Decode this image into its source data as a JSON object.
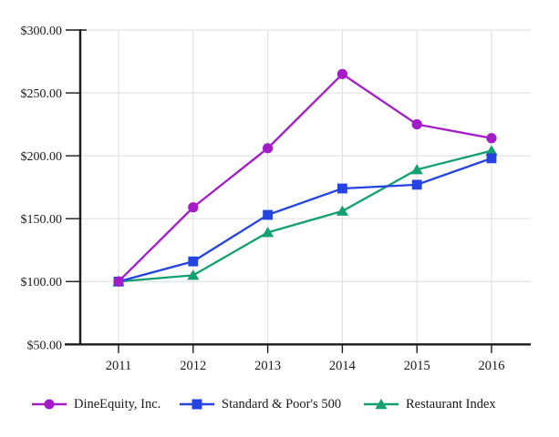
{
  "chart_data": {
    "type": "line",
    "title": "",
    "xlabel": "",
    "ylabel": "",
    "categories": [
      "2011",
      "2012",
      "2013",
      "2014",
      "2015",
      "2016"
    ],
    "series": [
      {
        "name": "DineEquity, Inc.",
        "marker": "circle",
        "color": "#A21CC8",
        "values": [
          100,
          159,
          206,
          265,
          225,
          214
        ]
      },
      {
        "name": "Standard & Poor's 500",
        "marker": "square",
        "color": "#2543E0",
        "values": [
          100,
          116,
          153,
          174,
          177,
          198
        ]
      },
      {
        "name": "Restaurant Index",
        "marker": "triangle",
        "color": "#12A06E",
        "values": [
          100,
          105,
          139,
          156,
          189,
          204
        ]
      }
    ],
    "ylim": [
      50,
      300
    ],
    "yticks": [
      50,
      100,
      150,
      200,
      250,
      300
    ],
    "ytick_labels": [
      "$50.00",
      "$100.00",
      "$150.00",
      "$200.00",
      "$250.00",
      "$300.00"
    ],
    "grid": true,
    "legend_position": "bottom",
    "axis_color": "#1a1a1a",
    "gridline_color": "#e2e2e2"
  }
}
